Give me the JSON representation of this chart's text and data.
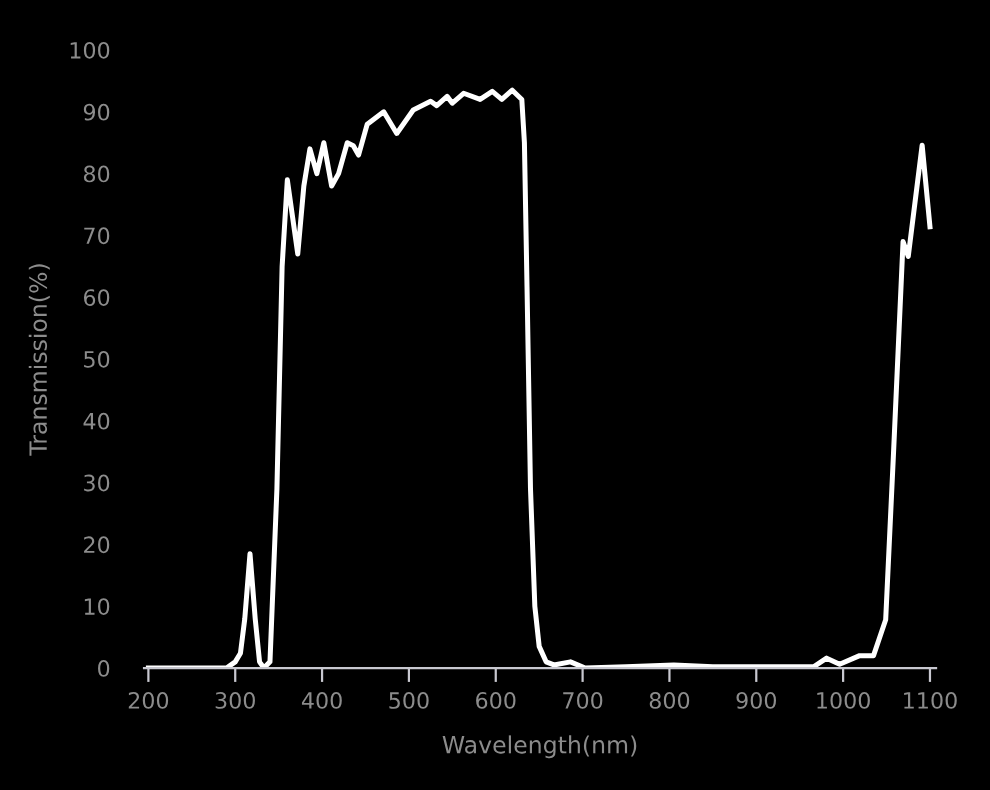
{
  "chart_data": {
    "type": "line",
    "xlabel": "Wavelength(nm)",
    "ylabel": "Transmission(%)",
    "xlim": [
      195,
      1107
    ],
    "ylim": [
      0,
      100
    ],
    "xticks": [
      200,
      300,
      400,
      500,
      600,
      700,
      800,
      900,
      1000,
      1100
    ],
    "yticks": [
      0,
      10,
      20,
      30,
      40,
      50,
      60,
      70,
      80,
      90,
      100
    ],
    "grid": false,
    "legend": false,
    "marker": "none",
    "line_style": "solid",
    "series": [
      {
        "color": "#ffffff",
        "x": [
          200,
          250,
          290,
          300,
          306,
          311,
          317,
          323,
          328,
          333,
          340,
          348,
          354,
          360,
          366,
          372,
          379,
          386,
          394,
          402,
          411,
          419,
          429,
          436,
          442,
          452,
          471,
          486,
          505,
          525,
          532,
          544,
          550,
          563,
          582,
          596,
          607,
          619,
          630,
          633,
          636,
          640,
          645,
          650,
          658,
          667,
          686,
          703,
          750,
          805,
          850,
          900,
          966,
          981,
          996,
          1019,
          1035,
          1049,
          1058,
          1069,
          1075,
          1091,
          1100
        ],
        "values": [
          0,
          0,
          0,
          1,
          2.4,
          8,
          18.5,
          8,
          1,
          0,
          1,
          29,
          65,
          79,
          73,
          67,
          78,
          84,
          80,
          85,
          78,
          80,
          85,
          84.5,
          83,
          88,
          90,
          86.5,
          90.3,
          91.7,
          91,
          92.5,
          91.4,
          93,
          92,
          93.3,
          92,
          93.5,
          92,
          85,
          61.7,
          29,
          10,
          3.5,
          1,
          0.5,
          1,
          0,
          0.2,
          0.5,
          0.2,
          0.2,
          0.2,
          1.6,
          0.6,
          2,
          2,
          7.8,
          34.7,
          69,
          66.6,
          84.6,
          71.4
        ]
      }
    ]
  }
}
